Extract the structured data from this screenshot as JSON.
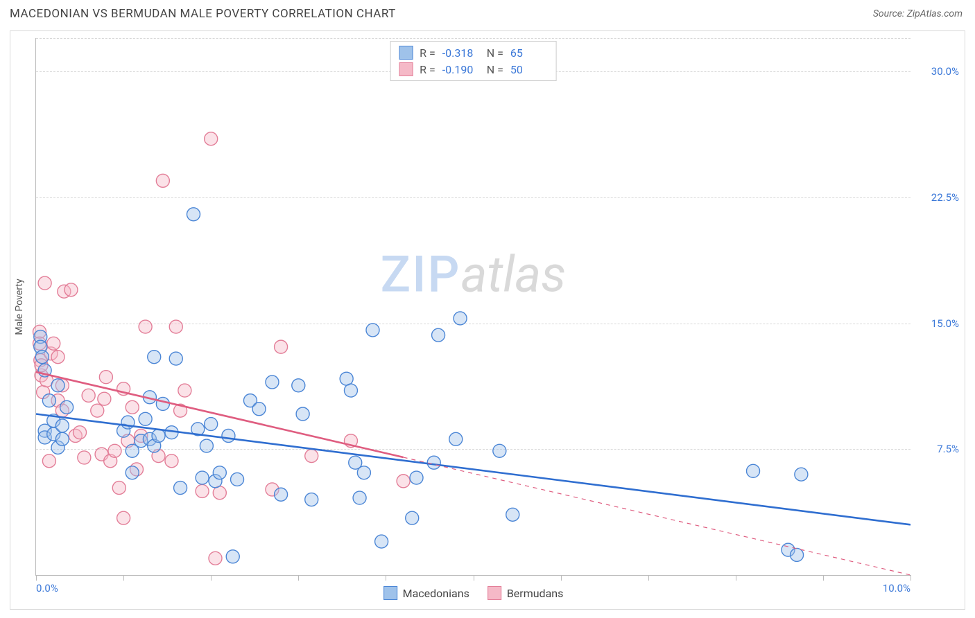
{
  "header": {
    "title": "MACEDONIAN VS BERMUDAN MALE POVERTY CORRELATION CHART",
    "source": "Source: ZipAtlas.com"
  },
  "chart": {
    "type": "scatter",
    "ylabel": "Male Poverty",
    "xlim": [
      0.0,
      10.0
    ],
    "ylim": [
      0.0,
      32.0
    ],
    "y_gridlines": [
      32.0,
      30.0,
      22.5,
      15.0,
      7.5
    ],
    "y_tick_labels": [
      {
        "v": 30.0,
        "label": "30.0%"
      },
      {
        "v": 22.5,
        "label": "22.5%"
      },
      {
        "v": 15.0,
        "label": "15.0%"
      },
      {
        "v": 7.5,
        "label": "7.5%"
      }
    ],
    "x_ticks": [
      0.0,
      1.0,
      2.0,
      3.0,
      4.0,
      5.0,
      6.0,
      7.0,
      8.0,
      9.0,
      10.0
    ],
    "x_tick_labels": [
      {
        "v": 0.0,
        "label": "0.0%",
        "align": "left"
      },
      {
        "v": 10.0,
        "label": "10.0%",
        "align": "right"
      }
    ],
    "background_color": "#ffffff",
    "grid_color": "#d8d8d8",
    "axis_color": "#bbbbbb",
    "axis_label_color": "#3b78d8",
    "marker_radius": 9.5,
    "marker_stroke_width": 1.4,
    "marker_fill_opacity": 0.42,
    "trend_line_width": 2.6,
    "trend_dash_width": 1.2,
    "watermark": {
      "left": "ZIP",
      "right": "atlas"
    },
    "series": [
      {
        "name": "Macedonians",
        "fill": "#9fc2ea",
        "stroke": "#4b86d6",
        "trend_color": "#2f6ed0",
        "trend": {
          "x1": 0.0,
          "y1": 9.6,
          "x2": 10.0,
          "y2": 3.0,
          "solid_to_x": 10.0
        },
        "stats": {
          "R": "-0.318",
          "N": "65"
        },
        "points": [
          [
            0.05,
            14.2
          ],
          [
            0.05,
            13.6
          ],
          [
            0.07,
            13.0
          ],
          [
            0.1,
            12.2
          ],
          [
            0.1,
            8.6
          ],
          [
            0.1,
            8.2
          ],
          [
            0.15,
            10.4
          ],
          [
            0.2,
            9.2
          ],
          [
            0.2,
            8.4
          ],
          [
            0.25,
            7.6
          ],
          [
            0.25,
            11.3
          ],
          [
            0.3,
            8.1
          ],
          [
            0.3,
            8.9
          ],
          [
            0.35,
            10.0
          ],
          [
            1.0,
            8.6
          ],
          [
            1.05,
            9.1
          ],
          [
            1.1,
            6.1
          ],
          [
            1.1,
            7.4
          ],
          [
            1.2,
            8.0
          ],
          [
            1.25,
            9.3
          ],
          [
            1.3,
            8.1
          ],
          [
            1.3,
            10.6
          ],
          [
            1.35,
            13.0
          ],
          [
            1.35,
            7.7
          ],
          [
            1.4,
            8.3
          ],
          [
            1.45,
            10.2
          ],
          [
            1.55,
            8.5
          ],
          [
            1.6,
            12.9
          ],
          [
            1.65,
            5.2
          ],
          [
            1.8,
            21.5
          ],
          [
            1.85,
            8.7
          ],
          [
            1.9,
            5.8
          ],
          [
            1.95,
            7.7
          ],
          [
            2.0,
            9.0
          ],
          [
            2.05,
            5.6
          ],
          [
            2.1,
            6.1
          ],
          [
            2.2,
            8.3
          ],
          [
            2.25,
            1.1
          ],
          [
            2.3,
            5.7
          ],
          [
            2.45,
            10.4
          ],
          [
            2.55,
            9.9
          ],
          [
            2.7,
            11.5
          ],
          [
            2.8,
            4.8
          ],
          [
            3.0,
            11.3
          ],
          [
            3.05,
            9.6
          ],
          [
            3.15,
            4.5
          ],
          [
            3.55,
            11.7
          ],
          [
            3.6,
            11.0
          ],
          [
            3.65,
            6.7
          ],
          [
            3.7,
            4.6
          ],
          [
            3.75,
            6.1
          ],
          [
            3.85,
            14.6
          ],
          [
            3.95,
            2.0
          ],
          [
            4.3,
            3.4
          ],
          [
            4.35,
            5.8
          ],
          [
            4.55,
            6.7
          ],
          [
            4.6,
            14.3
          ],
          [
            4.8,
            8.1
          ],
          [
            4.85,
            15.3
          ],
          [
            5.3,
            7.4
          ],
          [
            5.45,
            3.6
          ],
          [
            8.2,
            6.2
          ],
          [
            8.6,
            1.5
          ],
          [
            8.7,
            1.2
          ],
          [
            8.75,
            6.0
          ]
        ]
      },
      {
        "name": "Bermudans",
        "fill": "#f5b9c7",
        "stroke": "#e37e98",
        "trend_color": "#df5d80",
        "trend": {
          "x1": 0.0,
          "y1": 12.1,
          "x2": 10.0,
          "y2": 0.0,
          "solid_to_x": 4.2
        },
        "stats": {
          "R": "-0.190",
          "N": "50"
        },
        "points": [
          [
            0.04,
            14.5
          ],
          [
            0.04,
            13.8
          ],
          [
            0.05,
            12.8
          ],
          [
            0.06,
            11.9
          ],
          [
            0.06,
            12.5
          ],
          [
            0.08,
            10.9
          ],
          [
            0.1,
            17.4
          ],
          [
            0.12,
            11.6
          ],
          [
            0.15,
            6.8
          ],
          [
            0.17,
            13.2
          ],
          [
            0.2,
            13.8
          ],
          [
            0.25,
            13.0
          ],
          [
            0.25,
            10.4
          ],
          [
            0.3,
            11.3
          ],
          [
            0.3,
            9.8
          ],
          [
            0.32,
            16.9
          ],
          [
            0.4,
            17.0
          ],
          [
            0.45,
            8.3
          ],
          [
            0.5,
            8.5
          ],
          [
            0.55,
            7.0
          ],
          [
            0.6,
            10.7
          ],
          [
            0.7,
            9.8
          ],
          [
            0.75,
            7.2
          ],
          [
            0.78,
            10.5
          ],
          [
            0.8,
            11.8
          ],
          [
            0.85,
            6.8
          ],
          [
            0.9,
            7.4
          ],
          [
            0.95,
            5.2
          ],
          [
            1.0,
            11.1
          ],
          [
            1.0,
            3.4
          ],
          [
            1.05,
            8.0
          ],
          [
            1.1,
            10.0
          ],
          [
            1.15,
            6.3
          ],
          [
            1.2,
            8.3
          ],
          [
            1.25,
            14.8
          ],
          [
            1.4,
            7.1
          ],
          [
            1.45,
            23.5
          ],
          [
            1.55,
            6.8
          ],
          [
            1.6,
            14.8
          ],
          [
            1.65,
            9.8
          ],
          [
            1.7,
            11.0
          ],
          [
            1.9,
            5.0
          ],
          [
            2.0,
            26.0
          ],
          [
            2.05,
            1.0
          ],
          [
            2.1,
            4.9
          ],
          [
            2.7,
            5.1
          ],
          [
            2.8,
            13.6
          ],
          [
            3.15,
            7.1
          ],
          [
            3.6,
            8.0
          ],
          [
            4.2,
            5.6
          ]
        ]
      }
    ]
  }
}
